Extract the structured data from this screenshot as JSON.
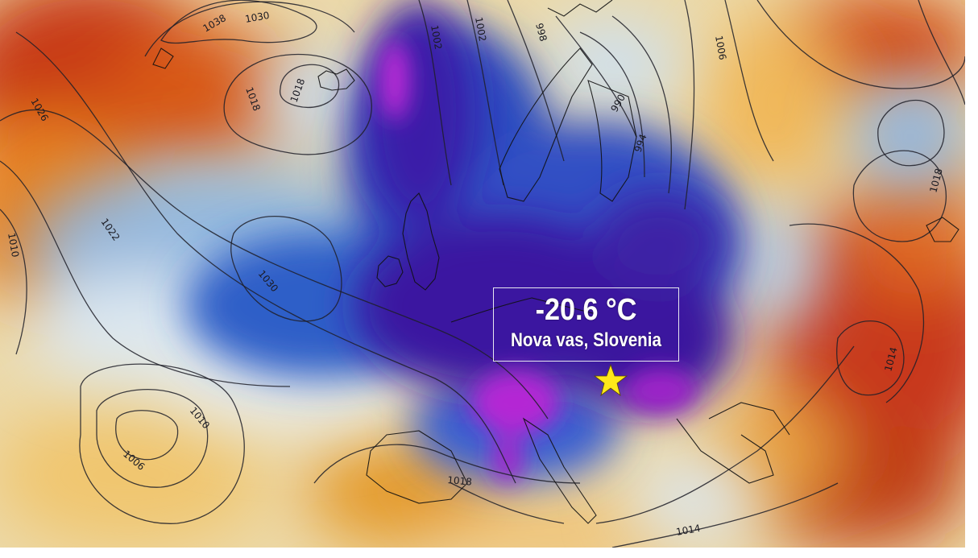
{
  "map": {
    "reading": {
      "temperature": "-20.6 °C",
      "location": "Nova vas, Slovenia",
      "marker_icon": "star-icon",
      "marker_color": "#ffe81a"
    },
    "isobar_labels": [
      "1038",
      "1030",
      "1018",
      "1018",
      "1026",
      "1022",
      "1030",
      "1010",
      "1010",
      "1006",
      "1018",
      "1014",
      "1014",
      "1002",
      "1002",
      "998",
      "990",
      "994",
      "1006",
      "1018"
    ],
    "palette": {
      "cold_extreme": "#c02ad8",
      "very_cold": "#3e13a0",
      "cold": "#2a57c8",
      "cool": "#8cb4e0",
      "neutral": "#e8eef2",
      "mild": "#eec060",
      "warm": "#e07018",
      "hot": "#b02010"
    }
  }
}
